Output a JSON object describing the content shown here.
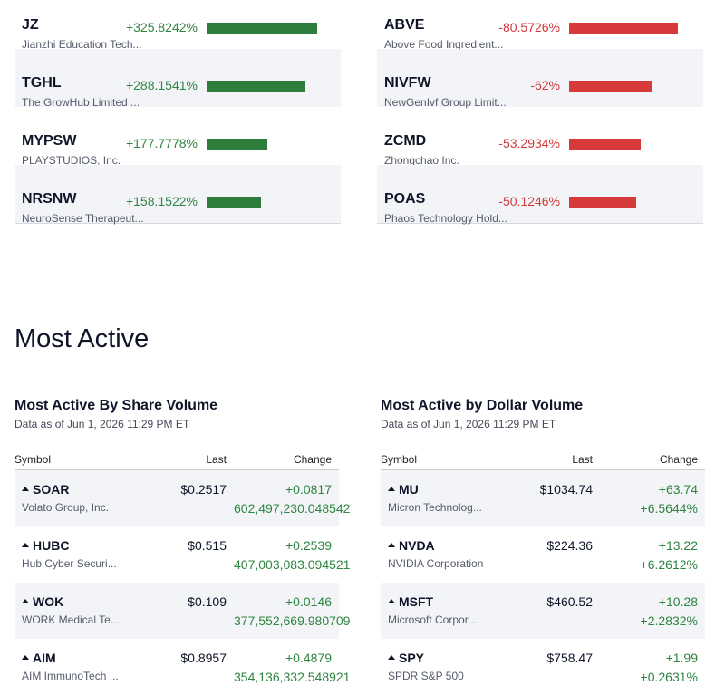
{
  "colors": {
    "gain": "#2e8540",
    "loss": "#d0393b",
    "bar_gain": "#2e7d3c",
    "bar_loss": "#d63a3a"
  },
  "gainers": [
    {
      "symbol": "JZ",
      "name": "Jianzhi Education Tech...",
      "change_pct": "+325.8242%",
      "bar_fraction": 1.0
    },
    {
      "symbol": "TGHL",
      "name": "The GrowHub Limited ...",
      "change_pct": "+288.1541%",
      "bar_fraction": 0.89
    },
    {
      "symbol": "MYPSW",
      "name": "PLAYSTUDIOS, Inc.",
      "change_pct": "+177.7778%",
      "bar_fraction": 0.55
    },
    {
      "symbol": "NRSNW",
      "name": "NeuroSense Therapeut...",
      "change_pct": "+158.1522%",
      "bar_fraction": 0.49
    }
  ],
  "losers": [
    {
      "symbol": "ABVE",
      "name": "Above Food Ingredient...",
      "change_pct": "-80.5726%",
      "bar_fraction": 1.0
    },
    {
      "symbol": "NIVFW",
      "name": "NewGenIvf Group Limit...",
      "change_pct": "-62%",
      "bar_fraction": 0.77
    },
    {
      "symbol": "ZCMD",
      "name": "Zhongchao Inc.",
      "change_pct": "-53.2934%",
      "bar_fraction": 0.66
    },
    {
      "symbol": "POAS",
      "name": "Phaos Technology Hold...",
      "change_pct": "-50.1246%",
      "bar_fraction": 0.62
    }
  ],
  "most_active": {
    "title": "Most Active",
    "share": {
      "title": "Most Active By Share Volume",
      "as_of": "Data as of Jun 1, 2026 11:29 PM ET",
      "headers": {
        "symbol": "Symbol",
        "last": "Last",
        "change": "Change"
      },
      "rows": [
        {
          "symbol": "SOAR",
          "name": "Volato Group, Inc.",
          "last": "$0.2517",
          "change": "+0.0817",
          "change2": "602,497,230.048542"
        },
        {
          "symbol": "HUBC",
          "name": "Hub Cyber Securi...",
          "last": "$0.515",
          "change": "+0.2539",
          "change2": "407,003,083.094521"
        },
        {
          "symbol": "WOK",
          "name": "WORK Medical Te...",
          "last": "$0.109",
          "change": "+0.0146",
          "change2": "377,552,669.980709"
        },
        {
          "symbol": "AIM",
          "name": "AIM ImmunoTech ...",
          "last": "$0.8957",
          "change": "+0.4879",
          "change2": "354,136,332.548921"
        }
      ]
    },
    "dollar": {
      "title": "Most Active by Dollar Volume",
      "as_of": "Data as of Jun 1, 2026 11:29 PM ET",
      "headers": {
        "symbol": "Symbol",
        "last": "Last",
        "change": "Change"
      },
      "rows": [
        {
          "symbol": "MU",
          "name": "Micron Technolog...",
          "last": "$1034.74",
          "change": "+63.74",
          "change2": "+6.5644%"
        },
        {
          "symbol": "NVDA",
          "name": "NVIDIA Corporation",
          "last": "$224.36",
          "change": "+13.22",
          "change2": "+6.2612%"
        },
        {
          "symbol": "MSFT",
          "name": "Microsoft Corpor...",
          "last": "$460.52",
          "change": "+10.28",
          "change2": "+2.2832%"
        },
        {
          "symbol": "SPY",
          "name": "SPDR S&P 500",
          "last": "$758.47",
          "change": "+1.99",
          "change2": "+0.2631%"
        }
      ]
    }
  }
}
